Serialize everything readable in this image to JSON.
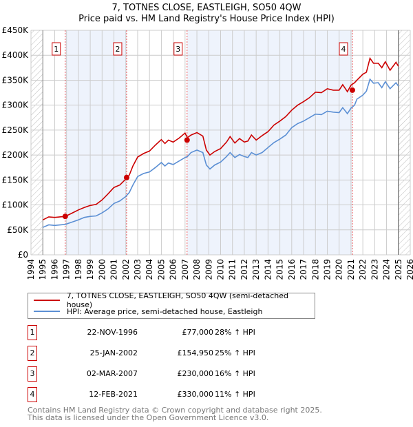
{
  "chart_data": {
    "type": "line",
    "title": "7, TOTNES CLOSE, EASTLEIGH, SO50 4QW",
    "subtitle": "Price paid vs. HM Land Registry's House Price Index (HPI)",
    "xlim": [
      1994,
      2026
    ],
    "ylim": [
      0,
      450000
    ],
    "x_ticks": [
      "1994",
      "1995",
      "1996",
      "1997",
      "1998",
      "1999",
      "2000",
      "2001",
      "2002",
      "2003",
      "2004",
      "2005",
      "2006",
      "2007",
      "2008",
      "2009",
      "2010",
      "2011",
      "2012",
      "2013",
      "2014",
      "2015",
      "2016",
      "2017",
      "2018",
      "2019",
      "2020",
      "2021",
      "2022",
      "2023",
      "2024",
      "2025",
      "2026"
    ],
    "y_ticks": [
      {
        "v": 0,
        "label": "£0"
      },
      {
        "v": 50000,
        "label": "£50K"
      },
      {
        "v": 100000,
        "label": "£100K"
      },
      {
        "v": 150000,
        "label": "£150K"
      },
      {
        "v": 200000,
        "label": "£200K"
      },
      {
        "v": 250000,
        "label": "£250K"
      },
      {
        "v": 300000,
        "label": "£300K"
      },
      {
        "v": 350000,
        "label": "£350K"
      },
      {
        "v": 400000,
        "label": "£400K"
      },
      {
        "v": 450000,
        "label": "£450K"
      }
    ],
    "grid": true,
    "x": [
      1995,
      1995.5,
      1996,
      1996.9,
      1997.5,
      1998,
      1998.5,
      1999,
      1999.5,
      2000,
      2000.5,
      2001,
      2001.5,
      2002,
      2002.3,
      2002.6,
      2003,
      2003.5,
      2004,
      2004.5,
      2005,
      2005.3,
      2005.6,
      2006,
      2006.5,
      2007,
      2007.2,
      2007.5,
      2008,
      2008.5,
      2008.8,
      2009.1,
      2009.5,
      2010,
      2010.5,
      2010.8,
      2011.2,
      2011.6,
      2012,
      2012.3,
      2012.6,
      2013,
      2013.5,
      2014,
      2014.5,
      2015,
      2015.5,
      2016,
      2016.5,
      2017,
      2017.5,
      2018,
      2018.5,
      2019,
      2019.5,
      2020,
      2020.3,
      2020.7,
      2021,
      2021.3,
      2021.5,
      2022,
      2022.3,
      2022.6,
      2022.9,
      2023.3,
      2023.6,
      2023.9,
      2024.3,
      2024.8,
      2025
    ],
    "series": [
      {
        "name": "7, TOTNES CLOSE, EASTLEIGH, SO50 4QW (semi-detached house)",
        "color": "#cc0000",
        "values": [
          70,
          76,
          75,
          77,
          84,
          90,
          95,
          99,
          101,
          110,
          122,
          135,
          140,
          152,
          160,
          178,
          196,
          203,
          208,
          220,
          231,
          223,
          230,
          226,
          234,
          244,
          235,
          240,
          245,
          238,
          210,
          200,
          207,
          213,
          226,
          237,
          224,
          233,
          226,
          228,
          240,
          230,
          239,
          247,
          260,
          268,
          277,
          290,
          300,
          307,
          315,
          326,
          325,
          333,
          330,
          330,
          341,
          327,
          340,
          345,
          350,
          362,
          366,
          394,
          384,
          384,
          375,
          387,
          370,
          386,
          378
        ]
      },
      {
        "name": "HPI: Average price, semi-detached house, Eastleigh",
        "color": "#5b8fd4",
        "values": [
          55,
          60,
          59,
          61,
          66,
          70,
          75,
          77,
          78,
          84,
          92,
          103,
          108,
          117,
          125,
          140,
          157,
          163,
          166,
          175,
          185,
          178,
          184,
          181,
          188,
          195,
          197,
          205,
          210,
          205,
          180,
          172,
          180,
          186,
          197,
          205,
          195,
          201,
          197,
          195,
          205,
          200,
          205,
          215,
          225,
          232,
          240,
          255,
          263,
          268,
          275,
          282,
          281,
          288,
          286,
          285,
          295,
          283,
          294,
          300,
          312,
          320,
          328,
          352,
          344,
          345,
          335,
          347,
          333,
          345,
          338
        ]
      }
    ],
    "value_unit": "thousand GBP",
    "sales": [
      {
        "n": "1",
        "x": 1996.89,
        "price": 77000,
        "date": "22-NOV-1996",
        "price_label": "£77,000",
        "hpi": "28% ↑ HPI"
      },
      {
        "n": "2",
        "x": 2002.07,
        "price": 154950,
        "date": "25-JAN-2002",
        "price_label": "£154,950",
        "hpi": "25% ↑ HPI"
      },
      {
        "n": "3",
        "x": 2007.17,
        "price": 230000,
        "date": "02-MAR-2007",
        "price_label": "£230,000",
        "hpi": "16% ↑ HPI"
      },
      {
        "n": "4",
        "x": 2021.12,
        "price": 330000,
        "date": "12-FEB-2021",
        "price_label": "£330,000",
        "hpi": "11% ↑ HPI"
      }
    ],
    "legend": [
      "7, TOTNES CLOSE, EASTLEIGH, SO50 4QW (semi-detached house)",
      "HPI: Average price, semi-detached house, Eastleigh"
    ],
    "legend_placement": "below"
  },
  "footer": [
    "Contains HM Land Registry data © Crown copyright and database right 2025.",
    "This data is licensed under the Open Government Licence v3.0."
  ]
}
